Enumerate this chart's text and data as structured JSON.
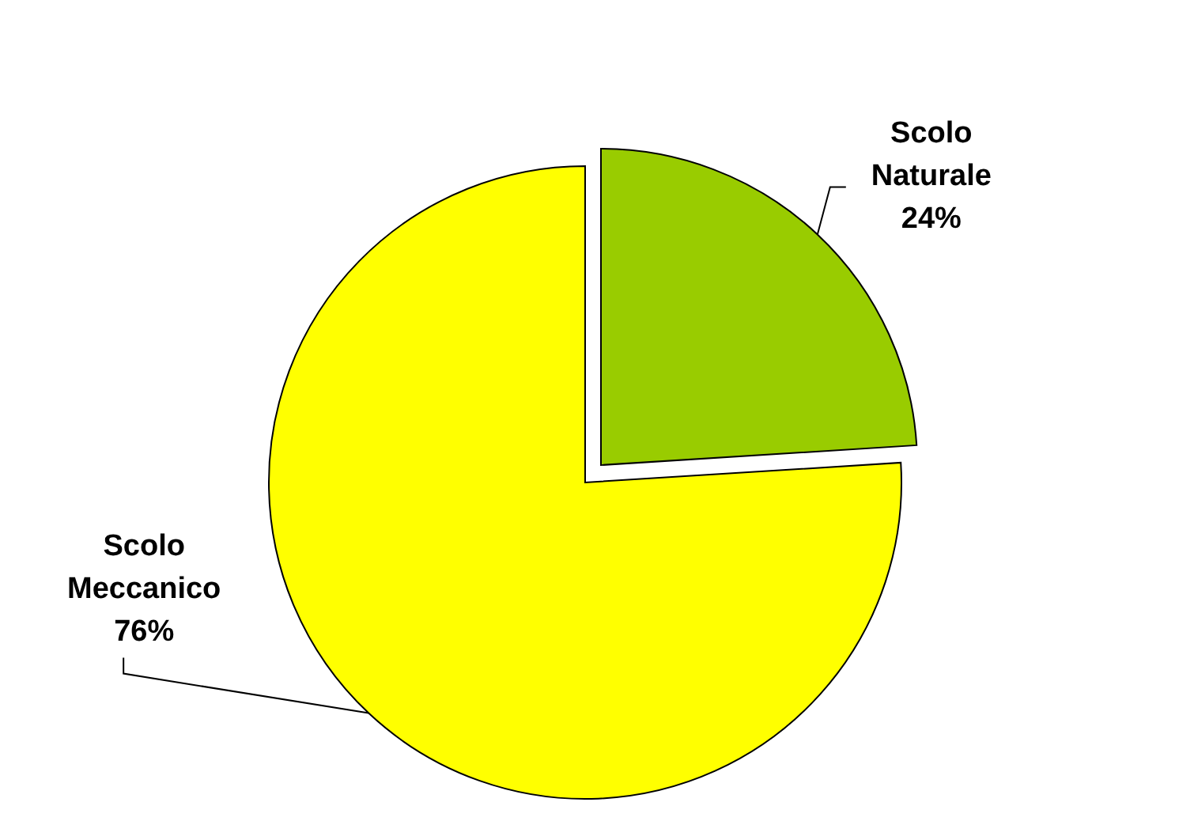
{
  "chart_data": {
    "type": "pie",
    "categories": [
      "Scolo Naturale",
      "Scolo Meccanico"
    ],
    "values": [
      24,
      76
    ],
    "colors": [
      "#99cc00",
      "#ffff00"
    ],
    "value_labels": [
      "24%",
      "76%"
    ],
    "data_labels": true
  }
}
